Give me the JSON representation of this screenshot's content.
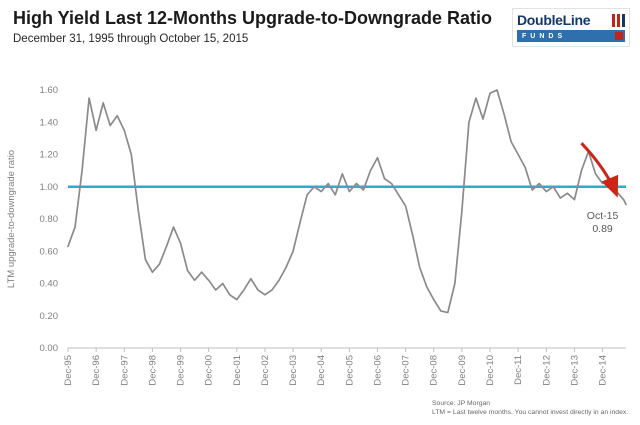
{
  "header": {
    "title": "High Yield Last 12-Months Upgrade-to-Downgrade Ratio",
    "subtitle": "December 31, 1995 through October 15, 2015"
  },
  "logo": {
    "brand": "DoubleLine",
    "funds": "FUNDS"
  },
  "footer": {
    "line1": "Source: JP Morgan",
    "line2": "LTM = Last twelve months. You cannot invest directly in an index."
  },
  "chart_data": {
    "type": "line",
    "title": "High Yield Last 12-Months Upgrade-to-Downgrade Ratio",
    "subtitle": "December 31, 1995 through October 15, 2015",
    "xlabel": "",
    "ylabel": "LTM upgrade-to-downgrade ratio",
    "ylim": [
      0,
      1.6
    ],
    "grid": false,
    "legend": "none",
    "ytick_values": [
      0,
      0.2,
      0.4,
      0.6,
      0.8,
      1.0,
      1.2,
      1.4,
      1.6
    ],
    "ytick_labels": [
      "0.00",
      "0.20",
      "0.40",
      "0.60",
      "0.80",
      "1.00",
      "1.20",
      "1.40",
      "1.60"
    ],
    "x_tick_labels": [
      "Dec-95",
      "Dec-96",
      "Dec-97",
      "Dec-98",
      "Dec-99",
      "Dec-00",
      "Dec-01",
      "Dec-02",
      "Dec-03",
      "Dec-04",
      "Dec-05",
      "Dec-06",
      "Dec-07",
      "Dec-08",
      "Dec-09",
      "Dec-10",
      "Dec-11",
      "Dec-12",
      "Dec-13",
      "Dec-14"
    ],
    "x_total_months": 238,
    "x_months_step": 3,
    "x_start": "Dec-95",
    "x_end": "Oct-15",
    "reference_line": {
      "value": 1.0,
      "color": "#29ABD2"
    },
    "series": [
      {
        "name": "LTM upgrade-to-downgrade ratio",
        "color": "#8A8A8A",
        "values": [
          0.63,
          0.75,
          1.1,
          1.55,
          1.35,
          1.52,
          1.38,
          1.44,
          1.35,
          1.2,
          0.85,
          0.55,
          0.47,
          0.52,
          0.63,
          0.75,
          0.65,
          0.48,
          0.42,
          0.47,
          0.42,
          0.36,
          0.4,
          0.33,
          0.3,
          0.36,
          0.43,
          0.36,
          0.33,
          0.36,
          0.42,
          0.5,
          0.6,
          0.78,
          0.95,
          1.0,
          0.97,
          1.02,
          0.95,
          1.08,
          0.97,
          1.02,
          0.98,
          1.1,
          1.18,
          1.05,
          1.02,
          0.95,
          0.88,
          0.7,
          0.5,
          0.38,
          0.3,
          0.23,
          0.22,
          0.4,
          0.85,
          1.4,
          1.55,
          1.42,
          1.58,
          1.6,
          1.45,
          1.28,
          1.2,
          1.12,
          0.98,
          1.02,
          0.97,
          1.0,
          0.93,
          0.96,
          0.92,
          1.1,
          1.22,
          1.08,
          1.02,
          1.05,
          0.97,
          0.92,
          0.89
        ]
      }
    ],
    "annotation": {
      "label": "Oct-15",
      "value_label": "0.89",
      "value": 0.89,
      "color": "#CE2418",
      "arrow": {
        "from_month": 219,
        "from_value": 1.27,
        "to_month": 234,
        "to_value": 0.95
      },
      "text_month": 228,
      "text_value": 0.8
    }
  }
}
